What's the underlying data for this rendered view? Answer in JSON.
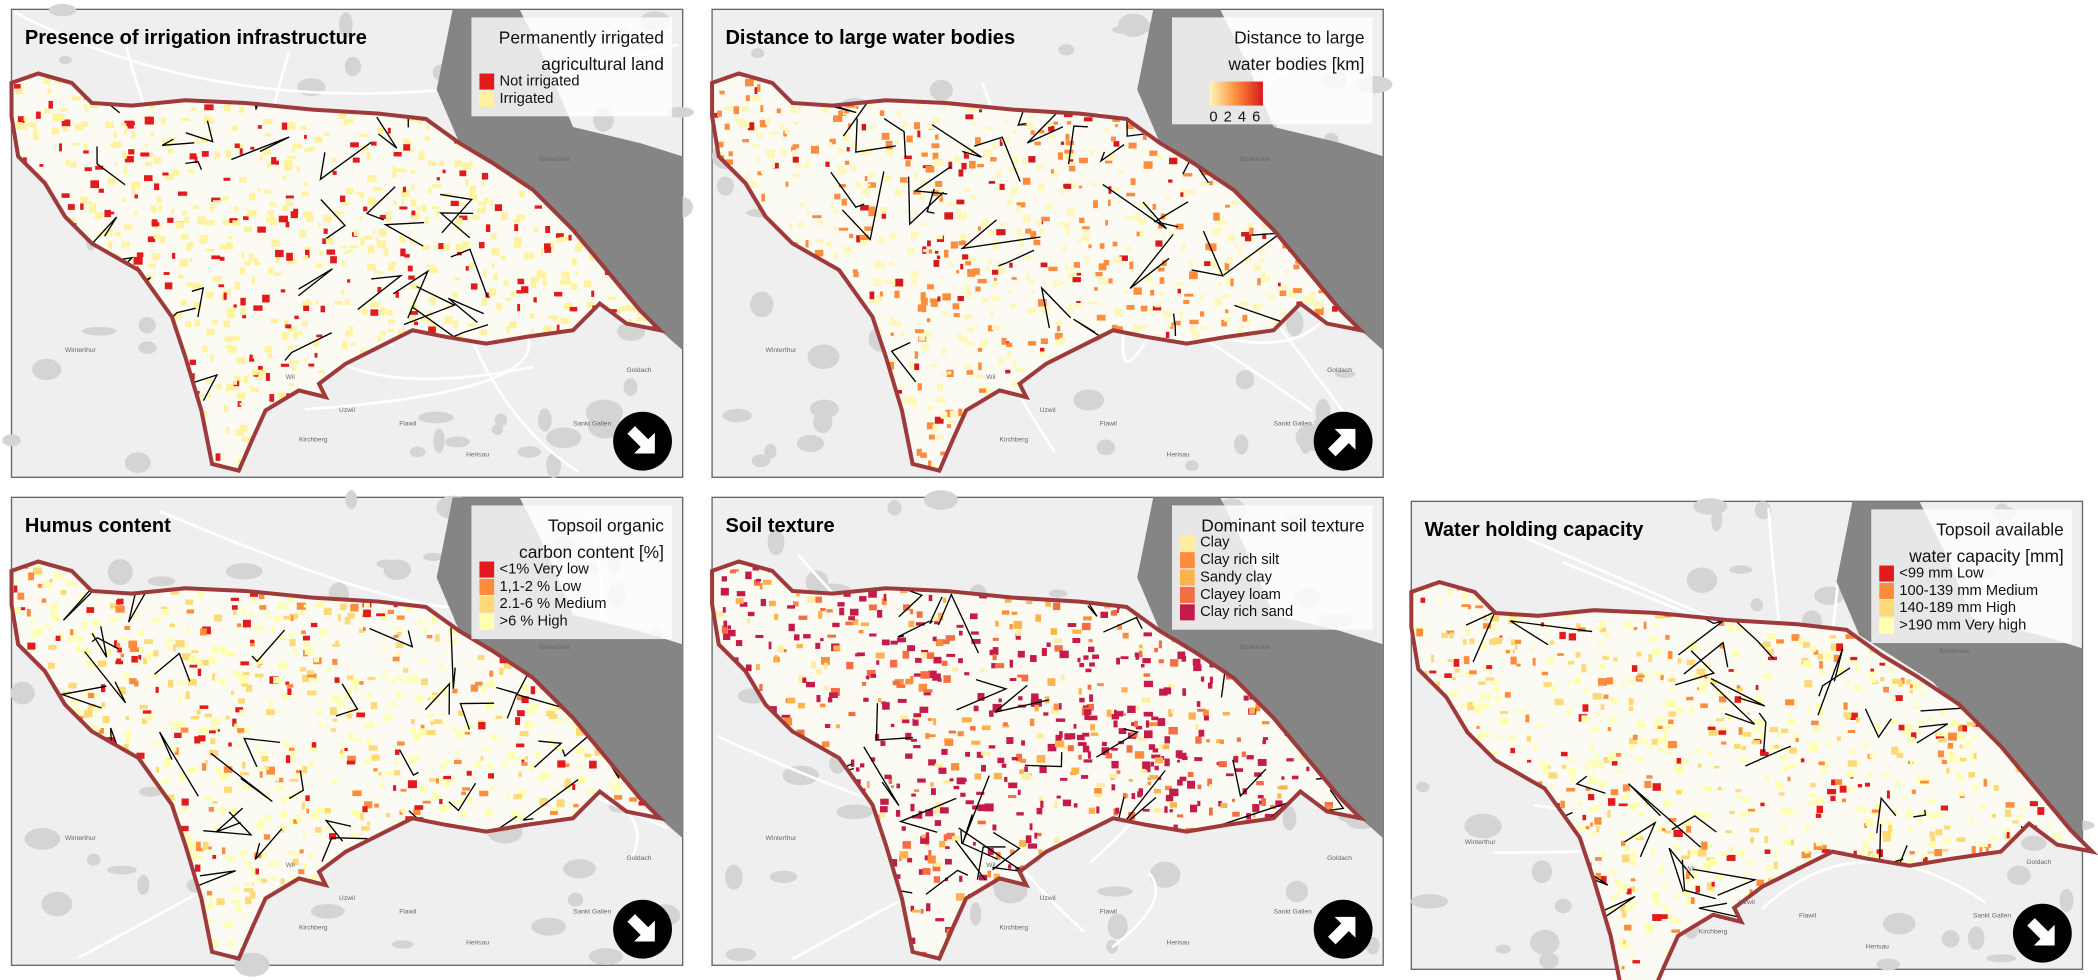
{
  "panels": [
    {
      "title": "Presence of irrigation infrastructure",
      "legend_title": [
        "Permanently irrigated",
        "agricultural land"
      ],
      "legend_type": "classes",
      "arrow": "down-right",
      "items": [
        {
          "name": "Not irrigated",
          "color": "#e31a1c"
        },
        {
          "name": "Irrigated",
          "color": "#fff3a0"
        }
      ]
    },
    {
      "title": "Distance to large water bodies",
      "legend_title": [
        "Distance to large",
        "water bodies [km]"
      ],
      "legend_type": "gradient",
      "arrow": "up-right",
      "colors": [
        "#fff7bc",
        "#fd8d3c",
        "#d7191c"
      ],
      "ticks": [
        0,
        2,
        4,
        6
      ]
    },
    {
      "title": "Humus content",
      "legend_title": [
        "Topsoil organic",
        "carbon content [%]"
      ],
      "legend_type": "classes",
      "arrow": "down-right",
      "items": [
        {
          "name": "<1% Very low",
          "color": "#e31a1c"
        },
        {
          "name": "1,1-2 % Low",
          "color": "#fd8d3c"
        },
        {
          "name": "2.1-6 % Medium",
          "color": "#fed976"
        },
        {
          "name": ">6 % High",
          "color": "#ffffb2"
        }
      ]
    },
    {
      "title": "Soil texture",
      "legend_title": [
        "Dominant soil texture"
      ],
      "legend_type": "classes",
      "arrow": "up-right",
      "items": [
        {
          "name": "Clay",
          "color": "#ffeda0"
        },
        {
          "name": "Clay rich silt",
          "color": "#fd8d3c"
        },
        {
          "name": "Sandy clay",
          "color": "#feb24c"
        },
        {
          "name": "Clayey loam",
          "color": "#f46d43"
        },
        {
          "name": "Clay rich sand",
          "color": "#c51b4a"
        }
      ]
    },
    {
      "title": "Water holding capacity",
      "legend_title": [
        "Topsoil available",
        "water capacity [mm]"
      ],
      "legend_type": "classes",
      "arrow": "down-right",
      "items": [
        {
          "name": "<99 mm Low",
          "color": "#e31a1c"
        },
        {
          "name": "100-139 mm Medium",
          "color": "#fd8d3c"
        },
        {
          "name": "140-189 mm High",
          "color": "#fed976"
        },
        {
          "name": ">190 mm Very high",
          "color": "#ffffb2"
        }
      ]
    }
  ],
  "place_labels": [
    "Winterthur",
    "Wil",
    "Uzwil",
    "Flawil",
    "Kirchberg",
    "Herisau",
    "Sankt Gallen",
    "Goldach",
    "Bodensee"
  ]
}
